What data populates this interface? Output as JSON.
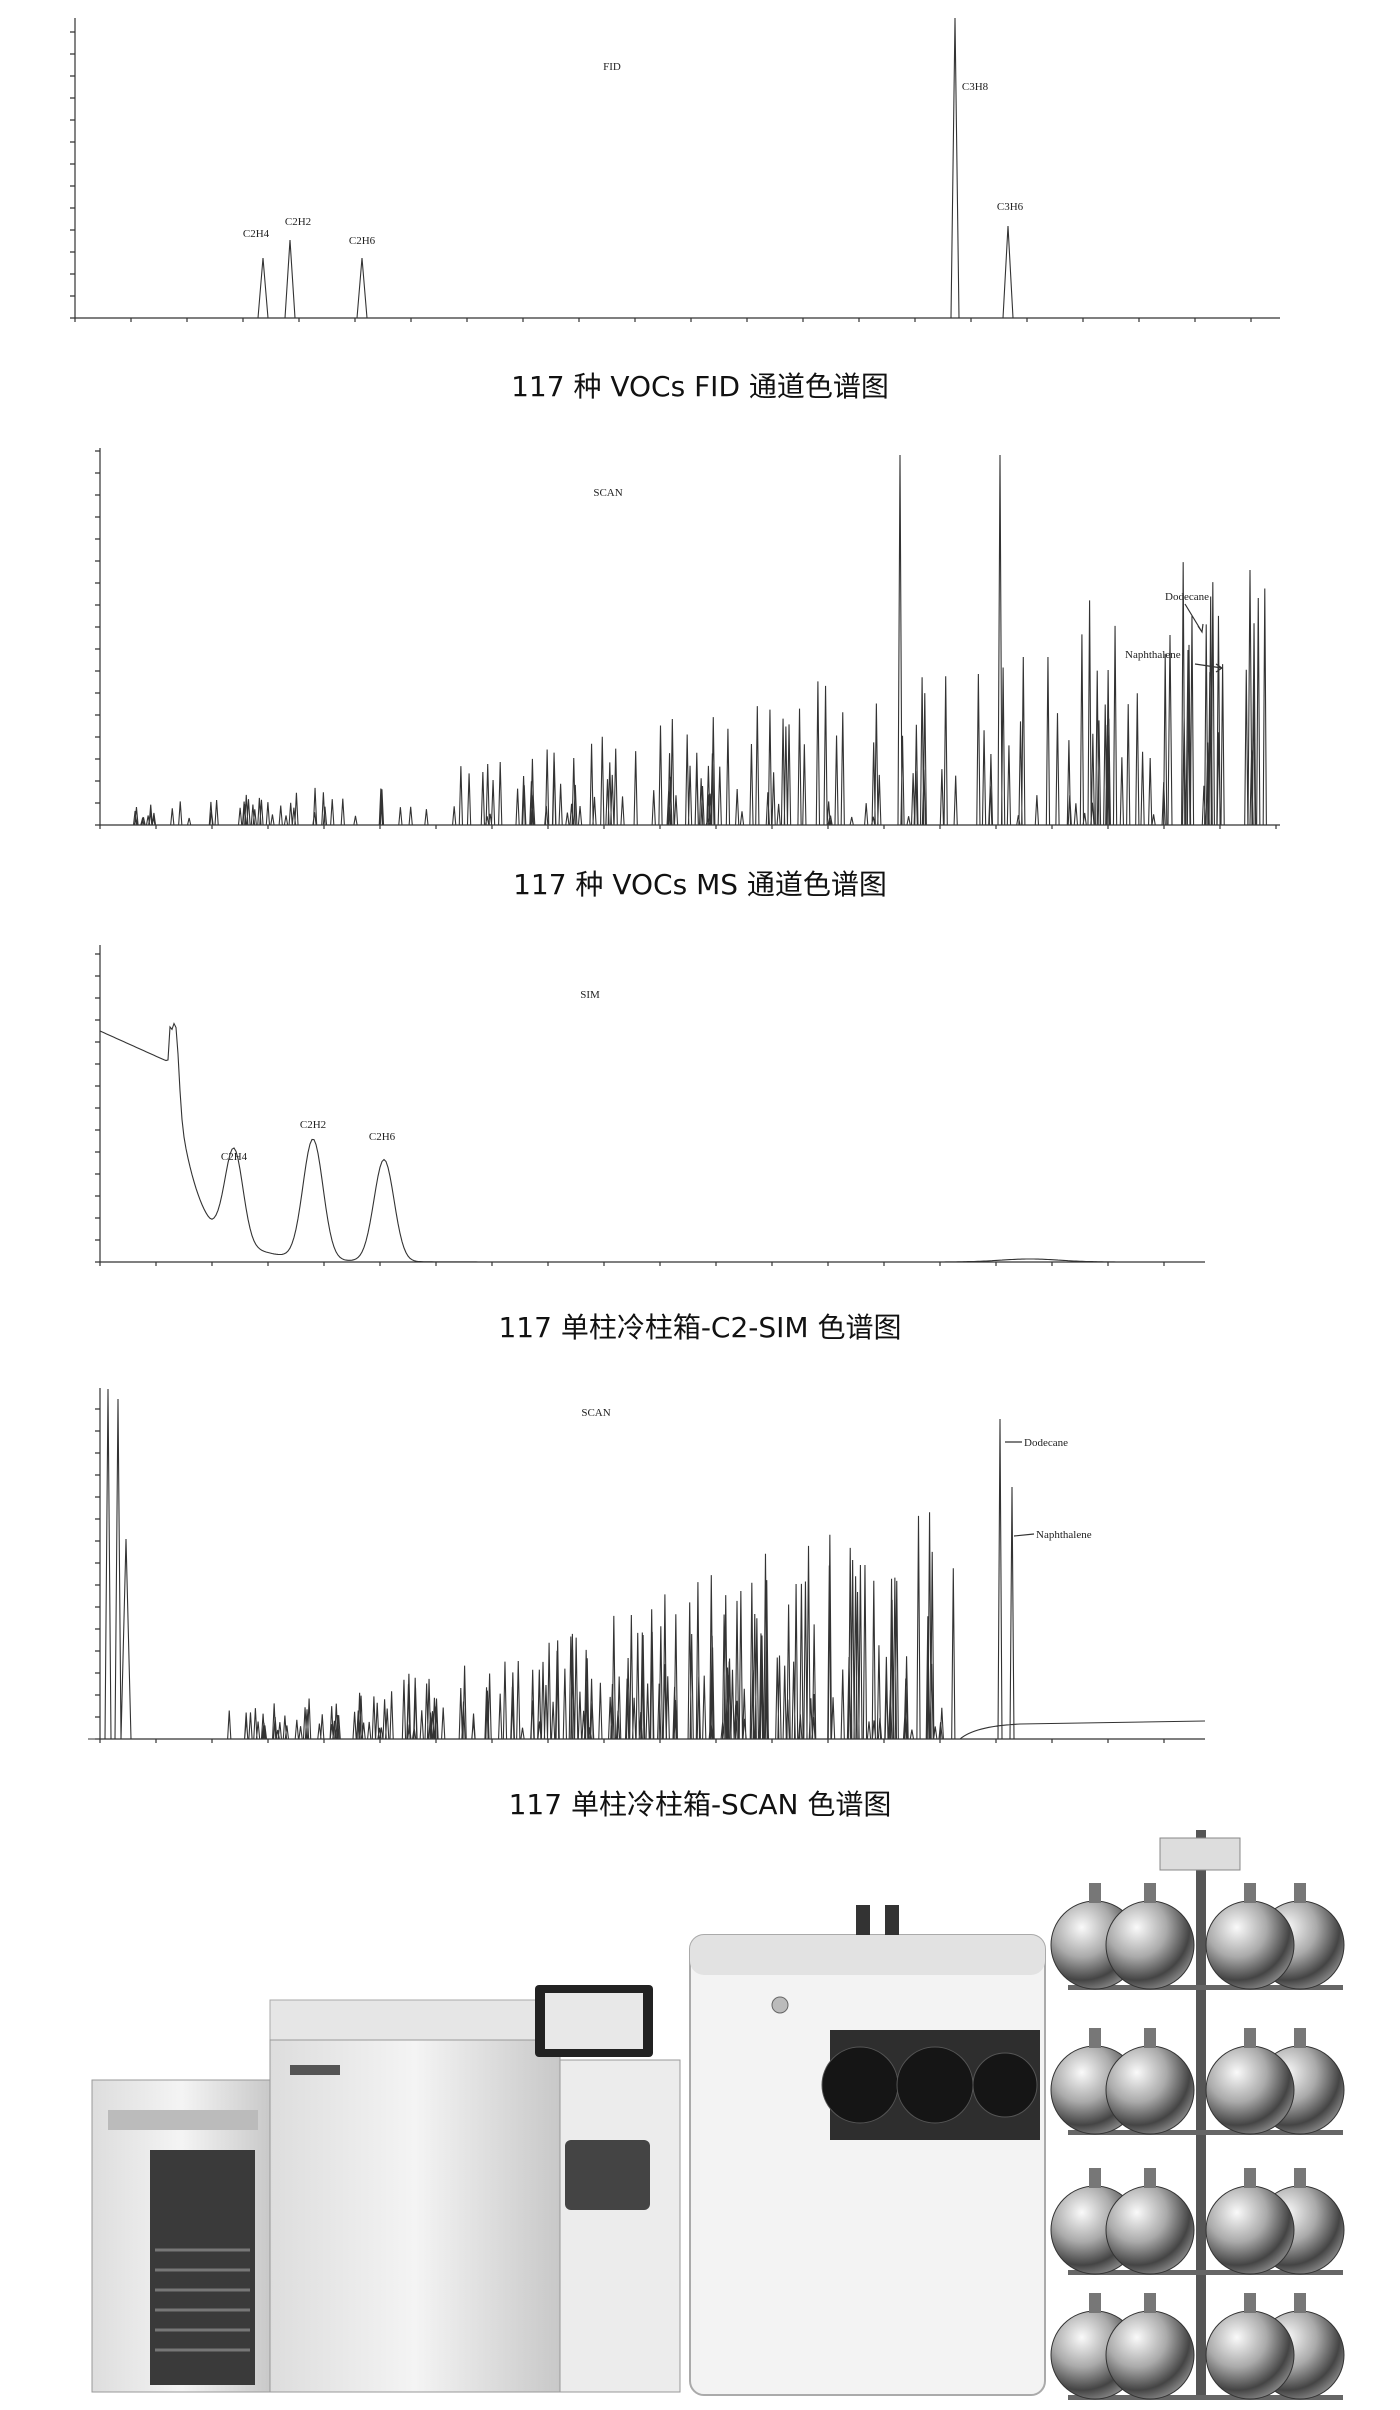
{
  "figures": [
    {
      "channel": "FID",
      "peak_labels": [
        "C2H4",
        "C2H2",
        "C2H6",
        "C3H8",
        "C3H6"
      ],
      "caption": "117 种 VOCs FID 通道色谱图"
    },
    {
      "channel": "SCAN",
      "peak_labels": [
        "Dodecane",
        "Naphthalene"
      ],
      "caption": "117 种 VOCs MS 通道色谱图"
    },
    {
      "channel": "SIM",
      "peak_labels": [
        "C2H4",
        "C2H2",
        "C2H6"
      ],
      "caption": "117  单柱冷柱箱-C2-SIM 色谱图"
    },
    {
      "channel": "SCAN",
      "peak_labels": [
        "Dodecane",
        "Naphthalene"
      ],
      "caption": "117 单柱冷柱箱-SCAN 色谱图"
    }
  ]
}
